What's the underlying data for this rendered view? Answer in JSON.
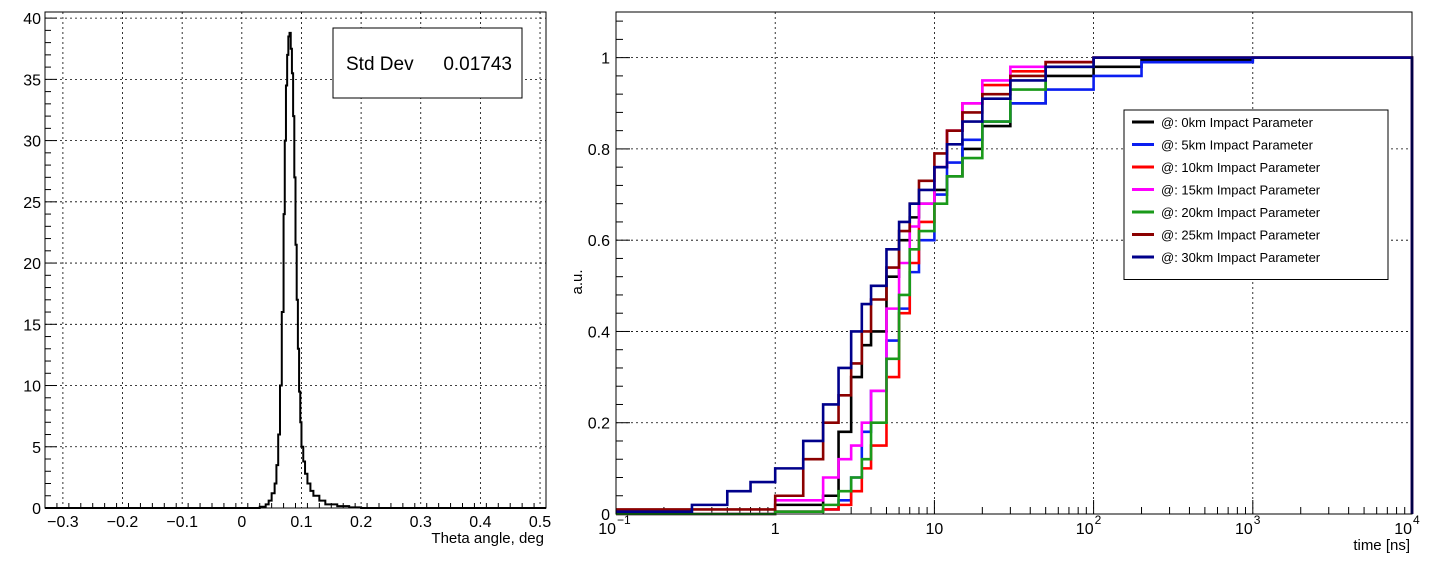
{
  "chart_data": [
    {
      "type": "histogram",
      "xlabel": "Theta angle, deg",
      "ylabel": "",
      "xlim": [
        -0.33,
        0.51
      ],
      "ylim": [
        0,
        40.5
      ],
      "x_ticks": [
        -0.3,
        -0.2,
        -0.1,
        0,
        0.1,
        0.2,
        0.3,
        0.4,
        0.5
      ],
      "x_tick_labels": [
        "−0.3",
        "−0.2",
        "−0.1",
        "0",
        "0.1",
        "0.2",
        "0.3",
        "0.4",
        "0.5"
      ],
      "y_ticks": [
        0,
        5,
        10,
        15,
        20,
        25,
        30,
        35,
        40
      ],
      "y_tick_labels": [
        "0",
        "5",
        "10",
        "15",
        "20",
        "25",
        "30",
        "35",
        "40"
      ],
      "grid": true,
      "color": "#000000",
      "bins": {
        "x": [
          0.03,
          0.04,
          0.045,
          0.05,
          0.055,
          0.058,
          0.061,
          0.064,
          0.067,
          0.07,
          0.072,
          0.074,
          0.076,
          0.078,
          0.08,
          0.082,
          0.084,
          0.086,
          0.088,
          0.09,
          0.092,
          0.094,
          0.096,
          0.098,
          0.1,
          0.103,
          0.106,
          0.11,
          0.115,
          0.12,
          0.13,
          0.14,
          0.16,
          0.18,
          0.2
        ],
        "values": [
          0.1,
          0.3,
          0.6,
          1.2,
          2.0,
          3.5,
          6.0,
          10.0,
          16.0,
          24.0,
          30.0,
          34.5,
          37.0,
          38.5,
          38.8,
          37.5,
          35.5,
          32.0,
          27.0,
          21.5,
          17.0,
          13.0,
          9.5,
          7.0,
          5.0,
          3.8,
          2.8,
          2.0,
          1.4,
          1.0,
          0.6,
          0.3,
          0.15,
          0.05
        ]
      },
      "stats_box": {
        "label": "Std Dev",
        "value": "0.01743",
        "placement": "top-right"
      }
    },
    {
      "type": "line",
      "step": true,
      "x_scale": "log",
      "xlabel": "time [ns]",
      "ylabel": "a.u.",
      "xlim": [
        0.1,
        10000
      ],
      "ylim": [
        0,
        1.1
      ],
      "x_ticks": [
        0.1,
        1,
        10,
        100,
        1000,
        10000
      ],
      "x_tick_labels": [
        {
          "base": "10",
          "exp": "−1"
        },
        {
          "base": "1",
          "exp": ""
        },
        {
          "base": "10",
          "exp": ""
        },
        {
          "base": "10",
          "exp": "2"
        },
        {
          "base": "10",
          "exp": "3"
        },
        {
          "base": "10",
          "exp": "4"
        }
      ],
      "y_ticks": [
        0,
        0.2,
        0.4,
        0.6,
        0.8,
        1
      ],
      "y_tick_labels": [
        "0",
        "0.2",
        "0.4",
        "0.6",
        "0.8",
        "1"
      ],
      "grid": true,
      "legend_placement": "top-right",
      "series": [
        {
          "name": "@: 0km Impact Parameter",
          "color": "#000000",
          "x": [
            0.1,
            1,
            2.0,
            2.5,
            3.0,
            3.5,
            4.0,
            5.0,
            6.0,
            7.0,
            8.0,
            10,
            12,
            15,
            20,
            30,
            50,
            100,
            200,
            1000,
            9999
          ],
          "y": [
            0,
            0.02,
            0.04,
            0.18,
            0.3,
            0.37,
            0.4,
            0.52,
            0.6,
            0.65,
            0.68,
            0.71,
            0.74,
            0.8,
            0.85,
            0.9,
            0.96,
            0.98,
            0.995,
            1.0,
            1.0
          ]
        },
        {
          "name": "@: 5km Impact Parameter",
          "color": "#0a1ef0",
          "x": [
            0.1,
            1,
            2.0,
            2.5,
            3.0,
            3.5,
            4.0,
            5.0,
            6.0,
            7.0,
            8.0,
            10,
            12,
            15,
            20,
            30,
            50,
            100,
            200,
            1000,
            9999
          ],
          "y": [
            0,
            0.005,
            0.01,
            0.03,
            0.08,
            0.18,
            0.27,
            0.38,
            0.45,
            0.53,
            0.6,
            0.7,
            0.77,
            0.82,
            0.86,
            0.9,
            0.93,
            0.96,
            0.99,
            1.0,
            1.0
          ]
        },
        {
          "name": "@: 10km Impact Parameter",
          "color": "#ff0000",
          "x": [
            0.1,
            1,
            2.0,
            2.5,
            3.0,
            3.5,
            4.0,
            5.0,
            6.0,
            7.0,
            8.0,
            10,
            12,
            15,
            20,
            30,
            50,
            100,
            200,
            1000,
            9999
          ],
          "y": [
            0,
            0.005,
            0.01,
            0.02,
            0.05,
            0.1,
            0.15,
            0.3,
            0.44,
            0.55,
            0.64,
            0.76,
            0.84,
            0.9,
            0.94,
            0.97,
            0.99,
            1.0,
            1.0,
            1.0,
            1.0
          ]
        },
        {
          "name": "@: 15km Impact Parameter",
          "color": "#ff00ff",
          "x": [
            0.1,
            1,
            2.0,
            2.5,
            3.0,
            3.5,
            4.0,
            5.0,
            6.0,
            7.0,
            8.0,
            10,
            12,
            15,
            20,
            30,
            50,
            100,
            200,
            1000,
            9999
          ],
          "y": [
            0,
            0.03,
            0.08,
            0.12,
            0.15,
            0.2,
            0.27,
            0.45,
            0.55,
            0.63,
            0.68,
            0.76,
            0.84,
            0.9,
            0.95,
            0.98,
            0.99,
            1.0,
            1.0,
            1.0,
            1.0
          ]
        },
        {
          "name": "@: 20km Impact Parameter",
          "color": "#1a9a1a",
          "x": [
            0.1,
            1,
            2.0,
            2.5,
            3.0,
            3.5,
            4.0,
            5.0,
            6.0,
            7.0,
            8.0,
            10,
            12,
            15,
            20,
            30,
            50,
            100,
            200,
            1000,
            9999
          ],
          "y": [
            0,
            0.005,
            0.02,
            0.05,
            0.08,
            0.12,
            0.2,
            0.34,
            0.48,
            0.58,
            0.62,
            0.68,
            0.74,
            0.78,
            0.86,
            0.93,
            0.98,
            1.0,
            1.0,
            1.0,
            1.0
          ]
        },
        {
          "name": "@: 25km Impact Parameter",
          "color": "#8b0000",
          "x": [
            0.1,
            1,
            1.5,
            2.0,
            2.5,
            3.0,
            3.5,
            4.0,
            5.0,
            6.0,
            7.0,
            8.0,
            10,
            12,
            15,
            20,
            30,
            50,
            100,
            200,
            1000,
            9999
          ],
          "y": [
            0.01,
            0.04,
            0.12,
            0.2,
            0.26,
            0.33,
            0.4,
            0.47,
            0.54,
            0.62,
            0.68,
            0.73,
            0.79,
            0.84,
            0.88,
            0.92,
            0.96,
            0.99,
            1.0,
            1.0,
            1.0,
            1.0
          ]
        },
        {
          "name": "@: 30km Impact Parameter",
          "color": "#00008b",
          "x": [
            0.1,
            0.3,
            0.5,
            0.7,
            1,
            1.5,
            2.0,
            2.5,
            3.0,
            3.5,
            4.0,
            5.0,
            6.0,
            7.0,
            8.0,
            10,
            12,
            15,
            20,
            30,
            50,
            100,
            200,
            1000,
            9999
          ],
          "y": [
            0.005,
            0.02,
            0.05,
            0.07,
            0.1,
            0.16,
            0.24,
            0.32,
            0.4,
            0.46,
            0.5,
            0.58,
            0.64,
            0.68,
            0.71,
            0.76,
            0.81,
            0.86,
            0.91,
            0.95,
            0.98,
            1.0,
            1.0,
            1.0,
            1.0
          ]
        }
      ]
    }
  ]
}
